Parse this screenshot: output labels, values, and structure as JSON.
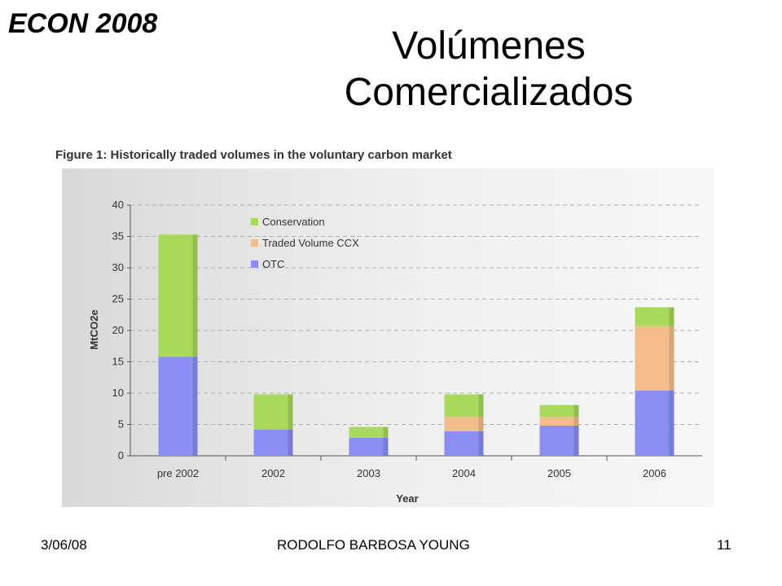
{
  "course_tag": "ECON 2008",
  "slide_title": "Volúmenes Comercializados",
  "footer": {
    "date": "3/06/08",
    "author": "RODOLFO BARBOSA YOUNG",
    "page": "11"
  },
  "chart_data": {
    "type": "bar",
    "stacked": true,
    "title": "Figure 1: Historically traded volumes in the voluntary carbon market",
    "xlabel": "Year",
    "ylabel": "MtCO2e",
    "ylim": [
      0,
      40
    ],
    "yticks": [
      0,
      5,
      10,
      15,
      20,
      25,
      30,
      35,
      40
    ],
    "grid": true,
    "legend_position": "top-left",
    "categories": [
      "pre 2002",
      "2002",
      "2003",
      "2004",
      "2005",
      "2006"
    ],
    "series": [
      {
        "name": "OTC",
        "color": "#8a8ef2",
        "values": [
          15.8,
          4.2,
          2.9,
          3.9,
          4.8,
          10.4
        ]
      },
      {
        "name": "Traded Volume CCX",
        "color": "#f2bd8a",
        "values": [
          0,
          0,
          0,
          2.3,
          1.4,
          10.3
        ]
      },
      {
        "name": "Conservation",
        "color": "#a8d95a",
        "values": [
          19.5,
          5.6,
          1.7,
          3.6,
          1.9,
          3.0
        ]
      }
    ],
    "legend_order": [
      "Conservation",
      "Traded Volume CCX",
      "OTC"
    ]
  }
}
